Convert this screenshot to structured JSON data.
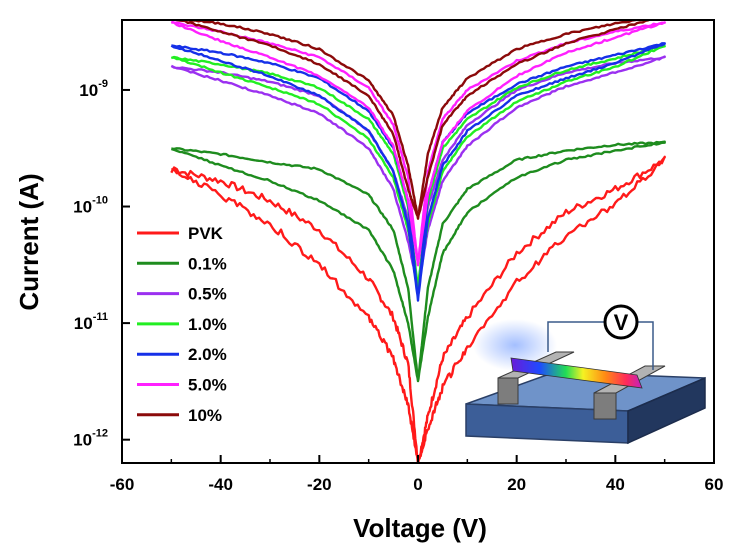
{
  "chart_data": {
    "type": "line",
    "title": "",
    "xlabel": "Voltage (V)",
    "ylabel": "Current (A)",
    "xlim": [
      -60,
      60
    ],
    "ylim_log10": [
      -12.2,
      -8.4
    ],
    "x_ticks": [
      -60,
      -40,
      -20,
      0,
      20,
      40,
      60
    ],
    "x_tick_labels": [
      "-60",
      "-40",
      "-20",
      "0",
      "20",
      "40",
      "60"
    ],
    "y_ticks_log10": [
      -12,
      -11,
      -10,
      -9
    ],
    "y_tick_labels": [
      {
        "base": "10",
        "exp": "-12"
      },
      {
        "base": "10",
        "exp": "-11"
      },
      {
        "base": "10",
        "exp": "-10"
      },
      {
        "base": "10",
        "exp": "-9"
      }
    ],
    "legend_position": "lower-left",
    "inset_symbol": "V",
    "series": [
      {
        "name": "PVK",
        "color": "#ff1a1a",
        "x": [
          -50,
          -40,
          -30,
          -20,
          -10,
          -5,
          -2,
          0,
          2,
          5,
          10,
          20,
          30,
          40,
          50
        ],
        "y_log10_upper": [
          -9.68,
          -9.78,
          -9.95,
          -10.2,
          -10.62,
          -10.95,
          -11.35,
          -12.2,
          -11.8,
          -11.3,
          -10.95,
          -10.4,
          -10.05,
          -9.85,
          -9.6
        ],
        "y_log10_lower": [
          -9.68,
          -9.9,
          -10.15,
          -10.5,
          -10.95,
          -11.3,
          -11.7,
          -12.2,
          -11.9,
          -11.55,
          -11.2,
          -10.65,
          -10.25,
          -9.98,
          -9.6
        ]
      },
      {
        "name": "0.1%",
        "color": "#1e8c1e",
        "x": [
          -50,
          -40,
          -30,
          -20,
          -10,
          -5,
          -2,
          0,
          2,
          5,
          10,
          20,
          30,
          40,
          50
        ],
        "y_log10_upper": [
          -9.5,
          -9.55,
          -9.62,
          -9.68,
          -9.9,
          -10.2,
          -10.7,
          -11.5,
          -10.7,
          -10.15,
          -9.85,
          -9.6,
          -9.52,
          -9.47,
          -9.45
        ],
        "y_log10_lower": [
          -9.5,
          -9.65,
          -9.78,
          -9.95,
          -10.2,
          -10.55,
          -11.0,
          -11.5,
          -10.95,
          -10.4,
          -10.05,
          -9.75,
          -9.6,
          -9.52,
          -9.45
        ]
      },
      {
        "name": "0.5%",
        "color": "#9b30f0",
        "x": [
          -50,
          -40,
          -30,
          -20,
          -10,
          -5,
          -2,
          0,
          2,
          5,
          10,
          20,
          30,
          40,
          50
        ],
        "y_log10_upper": [
          -8.8,
          -8.85,
          -8.93,
          -9.05,
          -9.35,
          -9.7,
          -10.1,
          -10.7,
          -10.0,
          -9.6,
          -9.3,
          -9.0,
          -8.85,
          -8.77,
          -8.72
        ],
        "y_log10_lower": [
          -8.8,
          -8.92,
          -9.05,
          -9.2,
          -9.5,
          -9.85,
          -10.3,
          -10.7,
          -10.2,
          -9.78,
          -9.48,
          -9.15,
          -8.97,
          -8.85,
          -8.72
        ]
      },
      {
        "name": "1.0%",
        "color": "#22ee22",
        "x": [
          -50,
          -40,
          -30,
          -20,
          -10,
          -5,
          -2,
          0,
          2,
          5,
          10,
          20,
          30,
          40,
          50
        ],
        "y_log10_upper": [
          -8.72,
          -8.78,
          -8.86,
          -8.98,
          -9.25,
          -9.55,
          -10.0,
          -10.7,
          -9.95,
          -9.5,
          -9.25,
          -8.98,
          -8.83,
          -8.73,
          -8.62
        ],
        "y_log10_lower": [
          -8.72,
          -8.85,
          -8.98,
          -9.12,
          -9.42,
          -9.75,
          -10.2,
          -10.7,
          -10.15,
          -9.7,
          -9.4,
          -9.1,
          -8.93,
          -8.8,
          -8.62
        ]
      },
      {
        "name": "2.0%",
        "color": "#1530e8",
        "x": [
          -50,
          -40,
          -30,
          -20,
          -10,
          -5,
          -2,
          0,
          2,
          5,
          10,
          20,
          30,
          40,
          50
        ],
        "y_log10_upper": [
          -8.62,
          -8.68,
          -8.77,
          -8.9,
          -9.18,
          -9.5,
          -9.95,
          -10.8,
          -9.9,
          -9.45,
          -9.2,
          -8.95,
          -8.8,
          -8.7,
          -8.6
        ],
        "y_log10_lower": [
          -8.62,
          -8.75,
          -8.88,
          -9.05,
          -9.35,
          -9.7,
          -10.15,
          -10.8,
          -10.1,
          -9.65,
          -9.35,
          -9.05,
          -8.9,
          -8.77,
          -8.6
        ]
      },
      {
        "name": "5.0%",
        "color": "#ff20ff",
        "x": [
          -50,
          -40,
          -30,
          -20,
          -10,
          -5,
          -2,
          0,
          2,
          5,
          10,
          20,
          30,
          40,
          50
        ],
        "y_log10_upper": [
          -8.42,
          -8.5,
          -8.6,
          -8.72,
          -8.98,
          -9.3,
          -9.75,
          -10.5,
          -9.7,
          -9.25,
          -9.0,
          -8.75,
          -8.6,
          -8.5,
          -8.42
        ],
        "y_log10_lower": [
          -8.42,
          -8.58,
          -8.72,
          -8.88,
          -9.15,
          -9.48,
          -9.95,
          -10.5,
          -9.9,
          -9.45,
          -9.18,
          -8.88,
          -8.68,
          -8.55,
          -8.42
        ]
      },
      {
        "name": "10%",
        "color": "#8b0a0a",
        "x": [
          -50,
          -40,
          -30,
          -20,
          -10,
          -5,
          -2,
          0,
          2,
          5,
          10,
          20,
          30,
          40,
          50
        ],
        "y_log10_upper": [
          -8.38,
          -8.43,
          -8.52,
          -8.65,
          -8.92,
          -9.22,
          -9.65,
          -10.1,
          -9.55,
          -9.15,
          -8.9,
          -8.65,
          -8.52,
          -8.43,
          -8.36
        ],
        "y_log10_lower": [
          -8.38,
          -8.5,
          -8.62,
          -8.78,
          -9.05,
          -9.38,
          -9.85,
          -10.1,
          -9.75,
          -9.3,
          -9.05,
          -8.78,
          -8.6,
          -8.48,
          -8.36
        ]
      }
    ]
  }
}
